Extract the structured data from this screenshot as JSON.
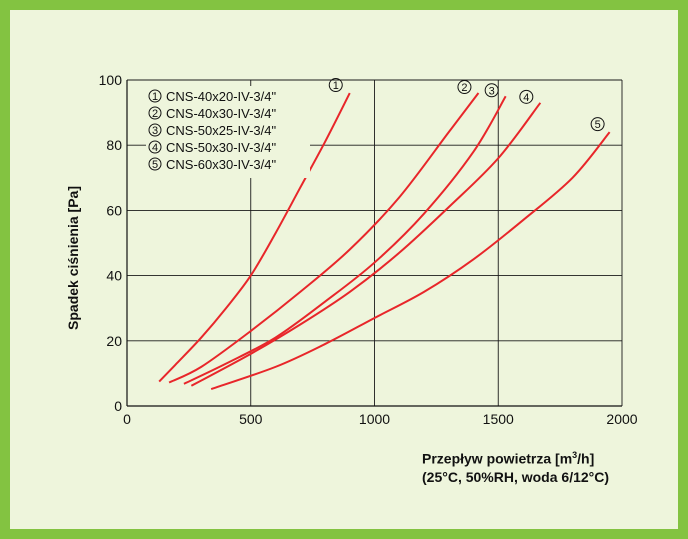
{
  "chart_data": {
    "type": "line",
    "xlim": [
      0,
      2000
    ],
    "ylim": [
      0,
      100
    ],
    "xticks": [
      0,
      500,
      1000,
      1500,
      2000
    ],
    "yticks": [
      0,
      20,
      40,
      60,
      80,
      100
    ],
    "ylabel": "Spadek  ciśnienia [Pa]",
    "xlabel_line1_prefix": "Przepływ  powietrza [m",
    "xlabel_line1_sup": "3",
    "xlabel_line1_suffix": "/h]",
    "xlabel_line2": "(25°C, 50%RH, woda 6/12°C)",
    "grid": true,
    "line_color": "#e8262a",
    "series": [
      {
        "name": "CNS-40x20-IV-3/4\"",
        "marker": "①",
        "x": [
          130,
          200,
          300,
          400,
          500,
          600,
          700,
          800,
          900
        ],
        "y": [
          7.5,
          13,
          21,
          30,
          40,
          53,
          67,
          81,
          96
        ]
      },
      {
        "name": "CNS-40x30-IV-3/4\"",
        "marker": "②",
        "x": [
          170,
          300,
          500,
          700,
          900,
          1100,
          1300,
          1420
        ],
        "y": [
          7.2,
          12,
          23,
          35,
          48,
          64,
          84,
          96
        ]
      },
      {
        "name": "CNS-50x25-IV-3/4\"",
        "marker": "③",
        "x": [
          230,
          400,
          600,
          800,
          1000,
          1200,
          1400,
          1530
        ],
        "y": [
          6.8,
          13,
          21,
          32,
          44,
          59,
          78,
          95
        ]
      },
      {
        "name": "CNS-50x30-IV-3/4\"",
        "marker": "④",
        "x": [
          260,
          500,
          700,
          900,
          1100,
          1300,
          1500,
          1670
        ],
        "y": [
          6.2,
          16,
          25,
          35,
          47,
          61,
          76,
          93
        ]
      },
      {
        "name": "CNS-60x30-IV-3/4\"",
        "marker": "⑤",
        "x": [
          340,
          600,
          800,
          1000,
          1200,
          1400,
          1600,
          1800,
          1950
        ],
        "y": [
          5.2,
          12,
          19,
          27,
          35,
          45,
          57,
          70,
          84
        ]
      }
    ]
  }
}
